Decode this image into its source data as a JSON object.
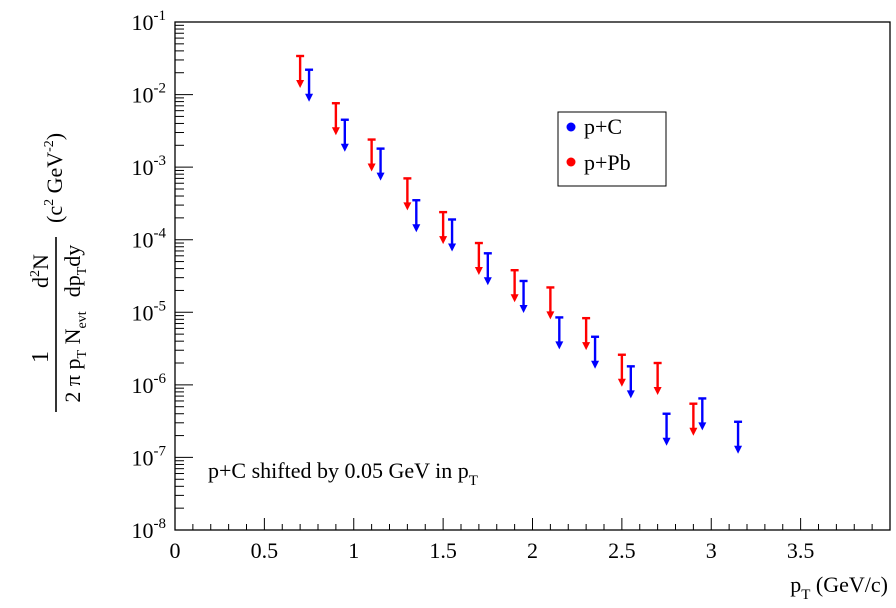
{
  "chart_data": {
    "type": "scatter",
    "title": "",
    "xlabel": {
      "main": "p",
      "sub": "T",
      "rest": " (GeV/c)"
    },
    "ylabel": {
      "numerator": "1",
      "denominator": {
        "pre": "2 π p",
        "sub1": "T",
        "mid": " N",
        "sub2": "evt"
      },
      "d2n": {
        "pre": "d",
        "sup": "2",
        "post": "N"
      },
      "dptdy": {
        "pre": "dp",
        "sub": "T",
        "post": "dy"
      },
      "units": {
        "open": "(c",
        "sup1": "2",
        "mid": " GeV",
        "sup2": "-2",
        "close": ")"
      }
    },
    "xlim": [
      0,
      4.0
    ],
    "ylim": [
      1e-08,
      0.1
    ],
    "log_y": true,
    "x_ticks": [
      {
        "v": 0,
        "label": "0"
      },
      {
        "v": 0.5,
        "label": "0.5"
      },
      {
        "v": 1,
        "label": "1"
      },
      {
        "v": 1.5,
        "label": "1.5"
      },
      {
        "v": 2,
        "label": "2"
      },
      {
        "v": 2.5,
        "label": "2.5"
      },
      {
        "v": 3,
        "label": "3"
      },
      {
        "v": 3.5,
        "label": "3.5"
      }
    ],
    "y_ticks": [
      {
        "exp": -8,
        "base": "10",
        "sup": "-8"
      },
      {
        "exp": -7,
        "base": "10",
        "sup": "-7"
      },
      {
        "exp": -6,
        "base": "10",
        "sup": "-6"
      },
      {
        "exp": -5,
        "base": "10",
        "sup": "-5"
      },
      {
        "exp": -4,
        "base": "10",
        "sup": "-4"
      },
      {
        "exp": -3,
        "base": "10",
        "sup": "-3"
      },
      {
        "exp": -2,
        "base": "10",
        "sup": "-2"
      },
      {
        "exp": -1,
        "base": "10",
        "sup": "-1"
      }
    ],
    "grid": false,
    "legend_position": "top-right",
    "annotation": {
      "main": "p+C shifted by 0.05 GeV in p",
      "sub": "T"
    },
    "note": "data points are upper limits drawn as downward arrows",
    "series": [
      {
        "name": "p+C",
        "color": "#0000ff",
        "points": [
          {
            "x": 0.75,
            "y": 0.022
          },
          {
            "x": 0.95,
            "y": 0.0045
          },
          {
            "x": 1.15,
            "y": 0.0018
          },
          {
            "x": 1.35,
            "y": 0.00035
          },
          {
            "x": 1.55,
            "y": 0.00019
          },
          {
            "x": 1.75,
            "y": 6.5e-05
          },
          {
            "x": 1.95,
            "y": 2.7e-05
          },
          {
            "x": 2.15,
            "y": 8.5e-06
          },
          {
            "x": 2.35,
            "y": 4.6e-06
          },
          {
            "x": 2.55,
            "y": 1.8e-06
          },
          {
            "x": 2.75,
            "y": 4e-07
          },
          {
            "x": 2.95,
            "y": 6.5e-07
          },
          {
            "x": 3.15,
            "y": 3.1e-07
          }
        ]
      },
      {
        "name": "p+Pb",
        "color": "#ff0000",
        "points": [
          {
            "x": 0.7,
            "y": 0.034
          },
          {
            "x": 0.9,
            "y": 0.0076
          },
          {
            "x": 1.1,
            "y": 0.0024
          },
          {
            "x": 1.3,
            "y": 0.0007
          },
          {
            "x": 1.5,
            "y": 0.00024
          },
          {
            "x": 1.7,
            "y": 9e-05
          },
          {
            "x": 1.9,
            "y": 3.8e-05
          },
          {
            "x": 2.1,
            "y": 2.2e-05
          },
          {
            "x": 2.3,
            "y": 8.3e-06
          },
          {
            "x": 2.5,
            "y": 2.6e-06
          },
          {
            "x": 2.7,
            "y": 2e-06
          },
          {
            "x": 2.9,
            "y": 5.5e-07
          }
        ]
      }
    ]
  }
}
